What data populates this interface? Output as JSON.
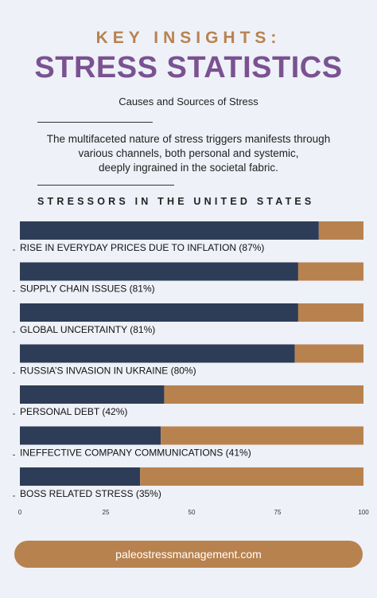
{
  "header": {
    "kicker": "KEY INSIGHTS:",
    "title": "STRESS STATISTICS",
    "subtitle": "Causes and Sources of Stress",
    "intro_lines": [
      "The multifaceted nature of stress triggers manifests through",
      "various channels, both personal and systemic,",
      "deeply ingrained in the societal fabric."
    ]
  },
  "chart_data": {
    "type": "bar",
    "orientation": "horizontal",
    "stacked": true,
    "title": "STRESSORS IN THE UNITED STATES",
    "categories": [
      "RISE IN EVERYDAY PRICES DUE TO INFLATION",
      "SUPPLY CHAIN ISSUES",
      "GLOBAL UNCERTAINTY",
      "RUSSIA’S INVASION IN UKRAINE",
      "PERSONAL DEBT",
      "INEFFECTIVE COMPANY COMMUNICATIONS",
      "BOSS RELATED STRESS"
    ],
    "labels": [
      "RISE IN EVERYDAY PRICES DUE TO INFLATION  (87%)",
      "SUPPLY CHAIN ISSUES  (81%)",
      "GLOBAL UNCERTAINTY  (81%)",
      "RUSSIA’S INVASION IN UKRAINE  (80%)",
      "PERSONAL DEBT  (42%)",
      "INEFFECTIVE COMPANY COMMUNICATIONS  (41%)",
      "BOSS RELATED STRESS  (35%)"
    ],
    "series": [
      {
        "values": [
          87,
          81,
          81,
          80,
          42,
          41,
          35
        ],
        "color": "#2d3d57"
      },
      {
        "values": [
          13,
          19,
          19,
          20,
          58,
          59,
          65
        ],
        "color": "#b8824f"
      }
    ],
    "xlim": [
      0,
      100
    ],
    "xticks": [
      "0",
      "25",
      "50",
      "75",
      "100"
    ],
    "xtick_values": [
      0,
      25,
      50,
      75,
      100
    ],
    "grid": false,
    "legend": "none"
  },
  "footer": {
    "url": "paleostressmanagement.com"
  }
}
